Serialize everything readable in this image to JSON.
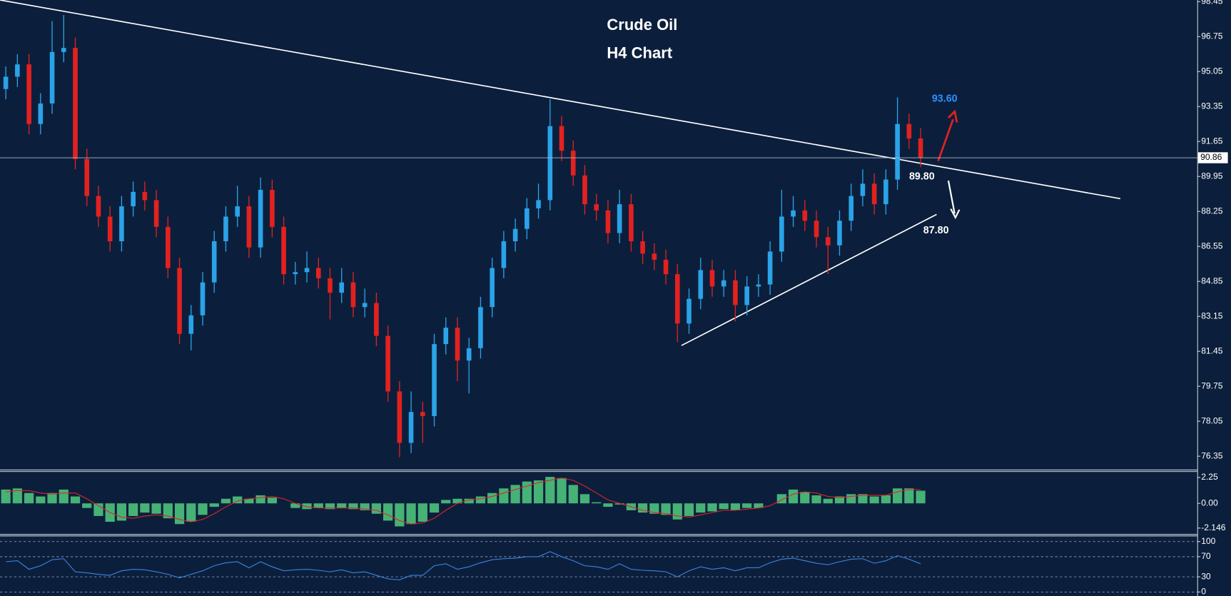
{
  "chart_data": [
    {
      "type": "candlestick",
      "title": "Crude Oil",
      "subtitle": "H4 Chart",
      "up_color": "#2aa3e8",
      "down_color": "#e3211f",
      "open": [
        94.2,
        94.8,
        95.4,
        92.5,
        93.5,
        96.0,
        96.2,
        90.8,
        89.0,
        88.0,
        86.8,
        88.5,
        89.2,
        88.8,
        87.5,
        85.5,
        82.3,
        83.2,
        84.8,
        86.8,
        88.0,
        88.5,
        86.5,
        89.3,
        87.5,
        85.2,
        85.3,
        85.5,
        85.0,
        84.3,
        84.8,
        83.6,
        83.8,
        82.2,
        79.5,
        77.0,
        78.5,
        78.3,
        81.8,
        82.6,
        81.0,
        81.6,
        83.6,
        85.5,
        86.8,
        87.4,
        88.4,
        88.8,
        92.4,
        91.2,
        90.0,
        88.6,
        88.3,
        87.2,
        88.6,
        86.8,
        86.2,
        85.9,
        85.2,
        82.8,
        84.0,
        85.4,
        84.6,
        84.9,
        83.7,
        84.6,
        84.7,
        86.3,
        88.0,
        88.3,
        87.8,
        87.0,
        86.6,
        87.8,
        89.0,
        89.6,
        88.6,
        89.8,
        92.5,
        91.8
      ],
      "high": [
        95.3,
        95.9,
        95.9,
        94.0,
        97.5,
        97.8,
        96.7,
        91.3,
        89.5,
        88.5,
        89.0,
        89.7,
        89.7,
        89.3,
        88.0,
        86.0,
        83.7,
        85.3,
        87.3,
        88.5,
        89.5,
        89.0,
        89.9,
        89.8,
        88.0,
        85.8,
        86.3,
        86.0,
        85.5,
        85.5,
        85.3,
        84.5,
        84.3,
        82.7,
        80.0,
        79.5,
        79.0,
        82.3,
        83.1,
        83.1,
        82.1,
        84.1,
        86.0,
        87.3,
        87.9,
        88.9,
        89.6,
        93.7,
        92.9,
        91.7,
        90.5,
        89.1,
        88.8,
        89.3,
        89.1,
        87.3,
        86.7,
        86.4,
        85.7,
        84.5,
        86.0,
        85.9,
        85.4,
        85.4,
        85.1,
        85.2,
        86.8,
        89.3,
        89.0,
        88.8,
        88.3,
        87.5,
        88.3,
        89.6,
        90.3,
        90.1,
        90.3,
        93.8,
        93.0,
        92.3
      ],
      "low": [
        93.7,
        94.3,
        92.0,
        92.0,
        93.0,
        95.5,
        90.3,
        88.5,
        87.5,
        86.3,
        86.3,
        88.0,
        88.3,
        87.0,
        85.0,
        81.8,
        81.5,
        82.7,
        84.3,
        86.3,
        87.5,
        86.0,
        86.0,
        87.0,
        84.7,
        84.7,
        84.8,
        84.5,
        83.0,
        83.8,
        83.1,
        83.1,
        81.7,
        79.0,
        76.3,
        76.5,
        77.0,
        77.8,
        81.3,
        80.0,
        79.4,
        81.1,
        83.1,
        85.0,
        86.3,
        86.9,
        87.9,
        88.3,
        90.7,
        89.5,
        88.1,
        87.8,
        86.7,
        86.7,
        86.3,
        85.7,
        85.4,
        84.7,
        81.9,
        82.3,
        83.5,
        84.1,
        84.1,
        82.9,
        83.2,
        84.1,
        84.2,
        85.8,
        87.5,
        87.3,
        86.5,
        85.2,
        86.1,
        87.3,
        88.5,
        88.1,
        88.1,
        89.3,
        91.3,
        90.4
      ],
      "close": [
        94.8,
        95.4,
        92.5,
        93.5,
        96.0,
        96.2,
        90.8,
        89.0,
        88.0,
        86.8,
        88.5,
        89.2,
        88.8,
        87.5,
        85.5,
        82.3,
        83.2,
        84.8,
        86.8,
        88.0,
        88.5,
        86.5,
        89.3,
        87.5,
        85.2,
        85.3,
        85.5,
        85.0,
        84.3,
        84.8,
        83.6,
        83.8,
        82.2,
        79.5,
        77.0,
        78.5,
        78.3,
        81.8,
        82.6,
        81.0,
        81.6,
        83.6,
        85.5,
        86.8,
        87.4,
        88.4,
        88.8,
        92.4,
        91.2,
        90.0,
        88.6,
        88.3,
        87.2,
        88.6,
        86.8,
        86.2,
        85.9,
        85.2,
        82.8,
        84.0,
        85.4,
        84.6,
        84.9,
        83.7,
        84.6,
        84.7,
        86.3,
        88.0,
        88.3,
        87.8,
        87.0,
        86.6,
        87.8,
        89.0,
        89.6,
        88.6,
        89.8,
        92.5,
        91.8,
        90.86
      ],
      "ylim": [
        75.7,
        98.53
      ],
      "yticks": [
        98.45,
        96.75,
        95.05,
        93.35,
        91.65,
        89.95,
        88.25,
        86.55,
        84.85,
        83.15,
        81.45,
        79.75,
        78.05,
        76.35
      ],
      "last_price": 90.86,
      "annotations": [
        "93.60",
        "89.80",
        "87.80"
      ]
    },
    {
      "type": "bar",
      "color": "#4cc27c",
      "values": [
        1.2,
        1.3,
        0.9,
        0.6,
        0.9,
        1.2,
        0.6,
        -0.4,
        -1.1,
        -1.6,
        -1.5,
        -1.1,
        -0.8,
        -0.9,
        -1.3,
        -1.8,
        -1.6,
        -1.0,
        -0.3,
        0.4,
        0.6,
        0.4,
        0.7,
        0.5,
        0.0,
        -0.4,
        -0.5,
        -0.4,
        -0.5,
        -0.4,
        -0.5,
        -0.6,
        -0.9,
        -1.5,
        -2.0,
        -1.8,
        -1.6,
        -0.8,
        0.3,
        0.4,
        0.4,
        0.6,
        0.9,
        1.3,
        1.6,
        1.9,
        2.0,
        2.3,
        2.2,
        1.6,
        0.8,
        0.1,
        -0.3,
        -0.1,
        -0.6,
        -0.8,
        -0.9,
        -1.0,
        -1.4,
        -1.1,
        -0.8,
        -0.7,
        -0.5,
        -0.6,
        -0.4,
        -0.4,
        0.0,
        0.8,
        1.2,
        1.0,
        0.7,
        0.4,
        0.6,
        0.8,
        0.8,
        0.6,
        0.7,
        1.3,
        1.3,
        1.1
      ],
      "signal": {
        "color": "#e02424",
        "values": [
          1.0,
          1.1,
          1.1,
          0.9,
          0.8,
          0.9,
          0.9,
          0.4,
          -0.2,
          -0.8,
          -1.2,
          -1.3,
          -1.1,
          -1.0,
          -1.1,
          -1.4,
          -1.6,
          -1.4,
          -0.9,
          -0.3,
          0.2,
          0.4,
          0.5,
          0.6,
          0.4,
          0.0,
          -0.3,
          -0.4,
          -0.4,
          -0.4,
          -0.4,
          -0.5,
          -0.6,
          -1.0,
          -1.5,
          -1.8,
          -1.7,
          -1.3,
          -0.6,
          0.0,
          0.3,
          0.4,
          0.6,
          0.9,
          1.2,
          1.5,
          1.8,
          2.0,
          2.2,
          2.0,
          1.5,
          0.9,
          0.3,
          0.0,
          -0.3,
          -0.6,
          -0.8,
          -0.9,
          -1.1,
          -1.2,
          -1.0,
          -0.8,
          -0.6,
          -0.6,
          -0.5,
          -0.4,
          -0.2,
          0.3,
          0.8,
          1.0,
          0.9,
          0.6,
          0.5,
          0.6,
          0.7,
          0.7,
          0.7,
          1.0,
          1.2,
          1.2
        ]
      },
      "ylim": [
        -2.66,
        2.8
      ],
      "yticks": [
        2.25,
        {
          "value": 0,
          "label": "0.00"
        },
        -2.146
      ]
    },
    {
      "type": "line",
      "color": "#3f82e0",
      "values": [
        60,
        62,
        45,
        52,
        64,
        66,
        40,
        38,
        35,
        33,
        42,
        45,
        44,
        40,
        35,
        28,
        35,
        42,
        52,
        58,
        60,
        48,
        60,
        50,
        42,
        44,
        45,
        43,
        40,
        44,
        38,
        40,
        33,
        26,
        24,
        33,
        33,
        52,
        56,
        45,
        50,
        58,
        64,
        66,
        67,
        70,
        70,
        80,
        70,
        62,
        52,
        50,
        45,
        56,
        45,
        43,
        42,
        40,
        30,
        42,
        50,
        45,
        48,
        42,
        48,
        48,
        58,
        65,
        67,
        62,
        57,
        54,
        60,
        65,
        66,
        57,
        62,
        72,
        65,
        56
      ],
      "ylim": [
        -8,
        112
      ],
      "yticks": [
        100,
        70,
        30,
        0
      ],
      "grid": true
    }
  ]
}
